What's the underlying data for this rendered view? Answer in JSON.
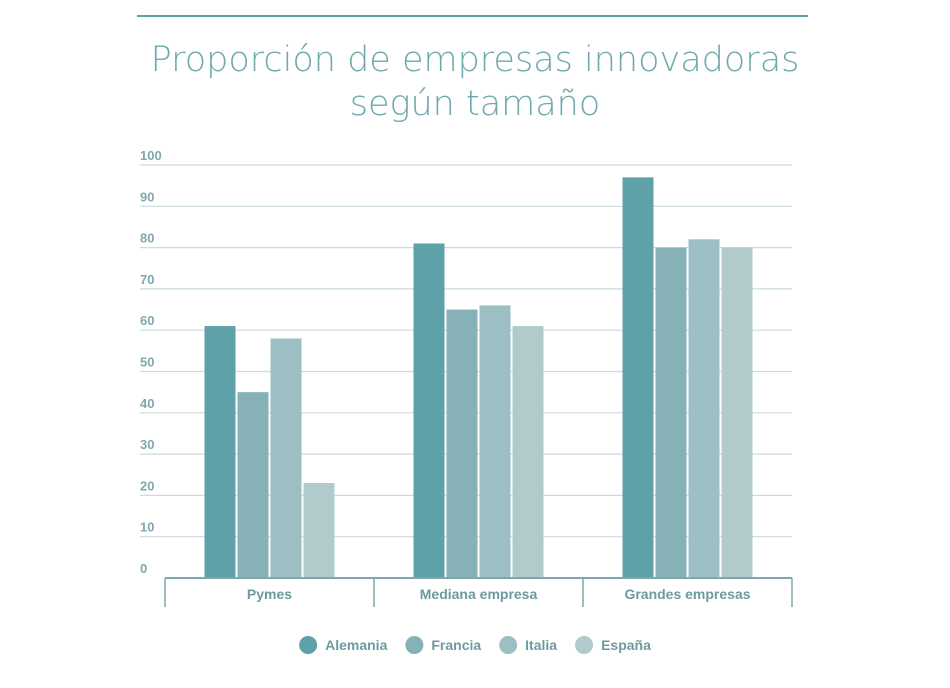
{
  "chart_data": {
    "type": "bar",
    "title": "Proporción de empresas innovadoras según tamaño",
    "title_lines": [
      "Proporción de empresas innovadoras",
      "según tamaño"
    ],
    "categories": [
      "Pymes",
      "Mediana empresa",
      "Grandes empresas"
    ],
    "series": [
      {
        "name": "Alemania",
        "values": [
          61,
          81,
          97
        ],
        "color": "#5fa1a8"
      },
      {
        "name": "Francia",
        "values": [
          45,
          65,
          80
        ],
        "color": "#86b2b7"
      },
      {
        "name": "Italia",
        "values": [
          58,
          66,
          82
        ],
        "color": "#9bbfc2"
      },
      {
        "name": "España",
        "values": [
          23,
          61,
          80
        ],
        "color": "#b1cbcd"
      }
    ],
    "yticks": [
      0,
      10,
      20,
      30,
      40,
      50,
      60,
      70,
      80,
      90,
      100
    ],
    "ylim": [
      0,
      100
    ],
    "xlabel": "",
    "ylabel": "",
    "grid": true,
    "legend_position": "bottom"
  }
}
